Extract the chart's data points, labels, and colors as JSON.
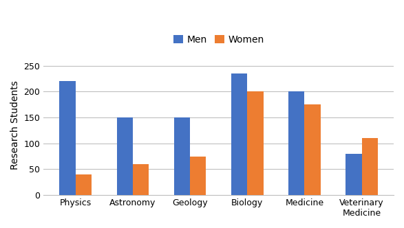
{
  "categories": [
    "Physics",
    "Astronomy",
    "Geology",
    "Biology",
    "Medicine",
    "Veterinary\nMedicine"
  ],
  "men_values": [
    220,
    150,
    150,
    235,
    200,
    80
  ],
  "women_values": [
    40,
    60,
    75,
    200,
    175,
    110
  ],
  "men_color": "#4472C4",
  "women_color": "#ED7D31",
  "ylabel": "Research Students",
  "legend_labels": [
    "Men",
    "Women"
  ],
  "ylim": [
    0,
    270
  ],
  "yticks": [
    0,
    50,
    100,
    150,
    200,
    250
  ],
  "bar_width": 0.28,
  "background_color": "#ffffff",
  "grid_color": "#bfbfbf",
  "ylabel_fontsize": 10,
  "tick_fontsize": 9,
  "legend_fontsize": 10
}
